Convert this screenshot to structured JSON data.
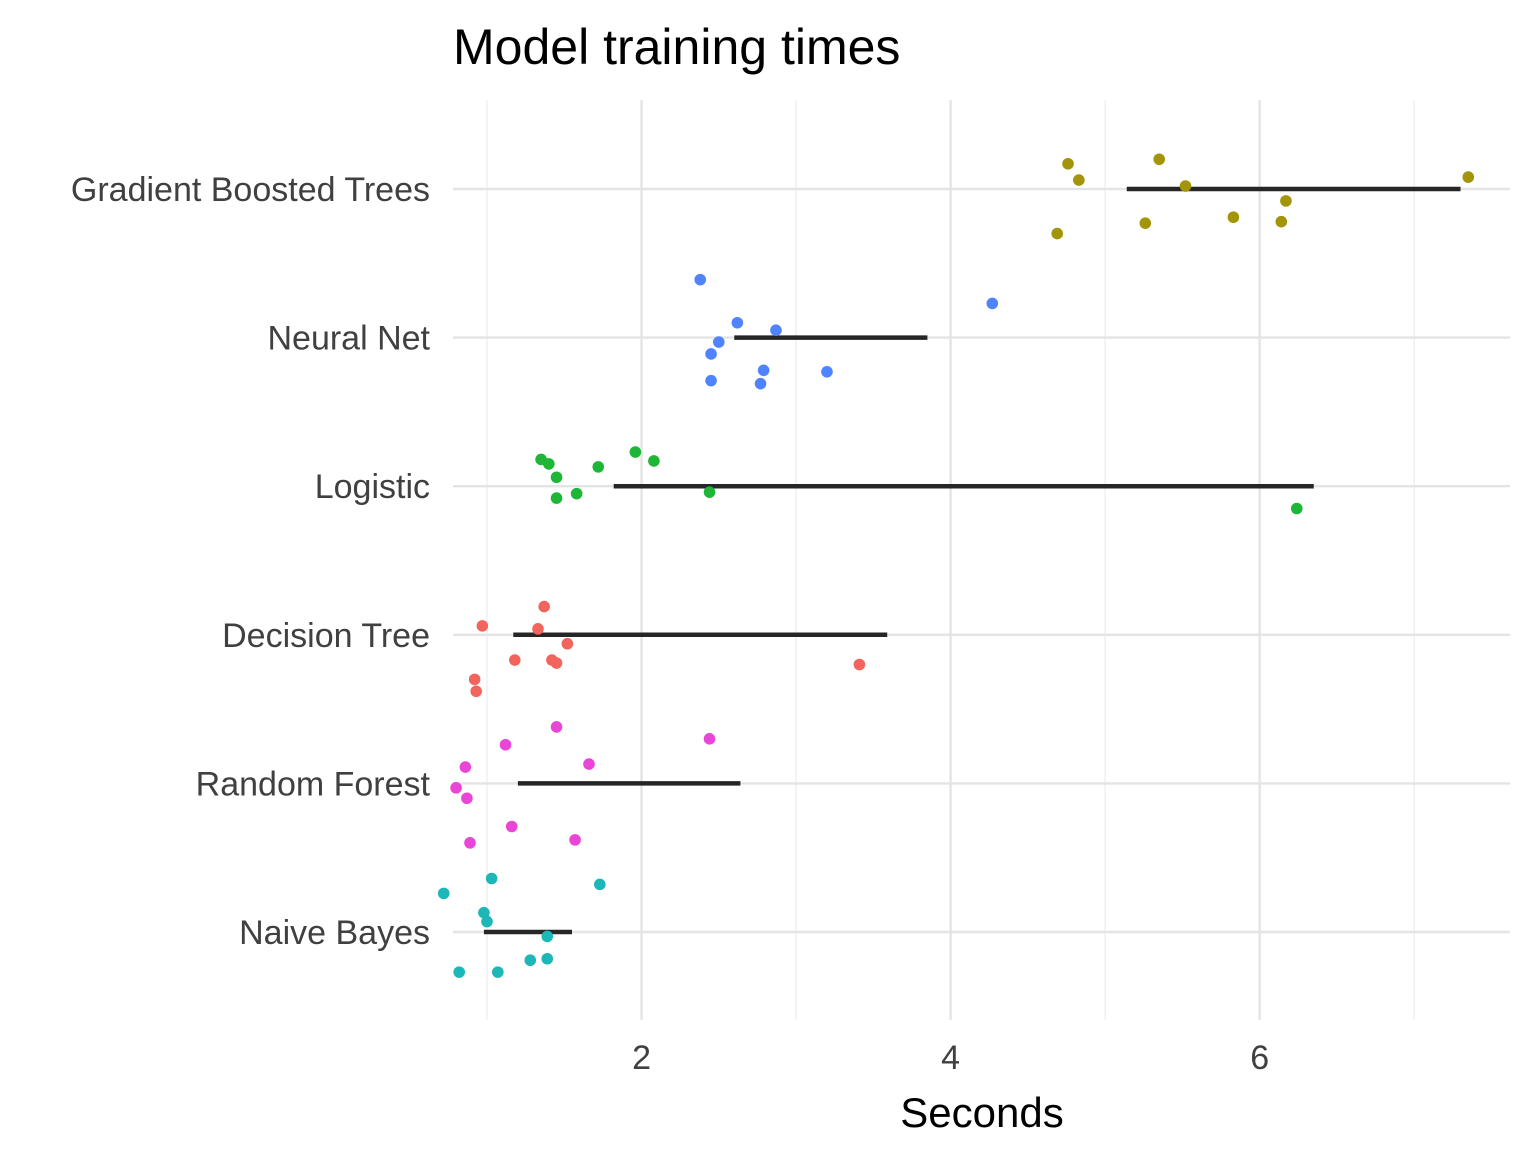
{
  "chart_data": {
    "type": "scatter",
    "title": "Model training times",
    "xlabel": "Seconds",
    "ylabel": "",
    "xlim": [
      0.78,
      7.62
    ],
    "xticks": [
      2,
      4,
      6
    ],
    "minor_xticks": [
      1,
      3,
      5,
      7
    ],
    "grid": true,
    "legend": "none",
    "categories": [
      "Gradient Boosted Trees",
      "Neural Net",
      "Logistic",
      "Decision Tree",
      "Random Forest",
      "Naive Bayes"
    ],
    "series": [
      {
        "category": "Gradient Boosted Trees",
        "color": "#A3940A",
        "range": [
          5.14,
          7.3
        ],
        "points": [
          {
            "x": 4.76,
            "y": 0.17
          },
          {
            "x": 5.35,
            "y": 0.2
          },
          {
            "x": 4.83,
            "y": 0.06
          },
          {
            "x": 7.35,
            "y": 0.08
          },
          {
            "x": 5.52,
            "y": 0.02
          },
          {
            "x": 6.17,
            "y": -0.08
          },
          {
            "x": 5.83,
            "y": -0.19
          },
          {
            "x": 5.26,
            "y": -0.23
          },
          {
            "x": 6.14,
            "y": -0.22
          },
          {
            "x": 4.69,
            "y": -0.3
          }
        ]
      },
      {
        "category": "Neural Net",
        "color": "#5083FF",
        "range": [
          2.6,
          3.85
        ],
        "points": [
          {
            "x": 2.38,
            "y": 0.39
          },
          {
            "x": 4.27,
            "y": 0.23
          },
          {
            "x": 2.62,
            "y": 0.1
          },
          {
            "x": 2.87,
            "y": 0.05
          },
          {
            "x": 2.5,
            "y": -0.03
          },
          {
            "x": 2.45,
            "y": -0.11
          },
          {
            "x": 2.79,
            "y": -0.22
          },
          {
            "x": 3.2,
            "y": -0.23
          },
          {
            "x": 2.45,
            "y": -0.29
          },
          {
            "x": 2.77,
            "y": -0.31
          }
        ]
      },
      {
        "category": "Logistic",
        "color": "#1EB637",
        "range": [
          1.82,
          6.35
        ],
        "points": [
          {
            "x": 1.96,
            "y": 0.23
          },
          {
            "x": 2.08,
            "y": 0.17
          },
          {
            "x": 1.35,
            "y": 0.18
          },
          {
            "x": 1.4,
            "y": 0.15
          },
          {
            "x": 1.72,
            "y": 0.13
          },
          {
            "x": 1.45,
            "y": 0.06
          },
          {
            "x": 2.44,
            "y": -0.04
          },
          {
            "x": 1.58,
            "y": -0.05
          },
          {
            "x": 1.45,
            "y": -0.08
          },
          {
            "x": 6.24,
            "y": -0.15
          }
        ]
      },
      {
        "category": "Decision Tree",
        "color": "#F2655E",
        "range": [
          1.17,
          3.59
        ],
        "points": [
          {
            "x": 1.37,
            "y": 0.19
          },
          {
            "x": 0.97,
            "y": 0.06
          },
          {
            "x": 1.33,
            "y": 0.04
          },
          {
            "x": 1.52,
            "y": -0.06
          },
          {
            "x": 1.18,
            "y": -0.17
          },
          {
            "x": 1.42,
            "y": -0.17
          },
          {
            "x": 1.45,
            "y": -0.19
          },
          {
            "x": 3.41,
            "y": -0.2
          },
          {
            "x": 0.92,
            "y": -0.3
          },
          {
            "x": 0.93,
            "y": -0.38
          }
        ]
      },
      {
        "category": "Random Forest",
        "color": "#E945D7",
        "range": [
          1.2,
          2.64
        ],
        "points": [
          {
            "x": 1.45,
            "y": 0.38
          },
          {
            "x": 2.44,
            "y": 0.3
          },
          {
            "x": 1.12,
            "y": 0.26
          },
          {
            "x": 1.66,
            "y": 0.13
          },
          {
            "x": 0.86,
            "y": 0.11
          },
          {
            "x": 0.8,
            "y": -0.03
          },
          {
            "x": 0.87,
            "y": -0.1
          },
          {
            "x": 1.16,
            "y": -0.29
          },
          {
            "x": 1.57,
            "y": -0.38
          },
          {
            "x": 0.89,
            "y": -0.4
          }
        ]
      },
      {
        "category": "Naive Bayes",
        "color": "#1DB7B7",
        "range": [
          0.98,
          1.55
        ],
        "points": [
          {
            "x": 1.03,
            "y": 0.36
          },
          {
            "x": 1.73,
            "y": 0.32
          },
          {
            "x": 0.72,
            "y": 0.26
          },
          {
            "x": 0.98,
            "y": 0.13
          },
          {
            "x": 1.0,
            "y": 0.07
          },
          {
            "x": 1.39,
            "y": -0.03
          },
          {
            "x": 1.39,
            "y": -0.18
          },
          {
            "x": 1.28,
            "y": -0.19
          },
          {
            "x": 0.82,
            "y": -0.27
          },
          {
            "x": 1.07,
            "y": -0.27
          }
        ]
      }
    ]
  }
}
